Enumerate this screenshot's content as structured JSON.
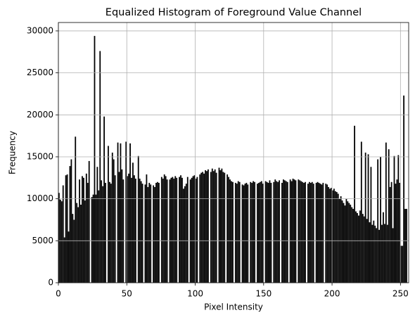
{
  "chart_data": {
    "type": "histogram",
    "title": "Equalized Histogram of Foreground Value Channel",
    "x_label": "Pixel Intensity",
    "y_label": "Frequency",
    "bins": [
      0,
      1,
      2,
      3,
      4,
      5,
      6,
      7,
      8,
      9,
      10,
      11,
      12,
      13,
      14,
      15,
      16,
      17,
      18,
      19,
      20,
      21,
      22,
      23,
      24,
      25,
      26,
      27,
      28,
      29,
      30,
      31,
      32,
      33,
      34,
      35,
      36,
      37,
      38,
      39,
      40,
      41,
      42,
      43,
      44,
      45,
      46,
      47,
      48,
      49,
      50,
      51,
      52,
      53,
      54,
      55,
      56,
      57,
      58,
      59,
      60,
      61,
      62,
      63,
      64,
      65,
      66,
      67,
      68,
      69,
      70,
      71,
      72,
      73,
      74,
      75,
      76,
      77,
      78,
      79,
      80,
      81,
      82,
      83,
      84,
      85,
      86,
      87,
      88,
      89,
      90,
      91,
      92,
      93,
      94,
      95,
      96,
      97,
      98,
      99,
      100,
      101,
      102,
      103,
      104,
      105,
      106,
      107,
      108,
      109,
      110,
      111,
      112,
      113,
      114,
      115,
      116,
      117,
      118,
      119,
      120,
      121,
      122,
      123,
      124,
      125,
      126,
      127,
      128,
      129,
      130,
      131,
      132,
      133,
      134,
      135,
      136,
      137,
      138,
      139,
      140,
      141,
      142,
      143,
      144,
      145,
      146,
      147,
      148,
      149,
      150,
      151,
      152,
      153,
      154,
      155,
      156,
      157,
      158,
      159,
      160,
      161,
      162,
      163,
      164,
      165,
      166,
      167,
      168,
      169,
      170,
      171,
      172,
      173,
      174,
      175,
      176,
      177,
      178,
      179,
      180,
      181,
      182,
      183,
      184,
      185,
      186,
      187,
      188,
      189,
      190,
      191,
      192,
      193,
      194,
      195,
      196,
      197,
      198,
      199,
      200,
      201,
      202,
      203,
      204,
      205,
      206,
      207,
      208,
      209,
      210,
      211,
      212,
      213,
      214,
      215,
      216,
      217,
      218,
      219,
      220,
      221,
      222,
      223,
      224,
      225,
      226,
      227,
      228,
      229,
      230,
      231,
      232,
      233,
      234,
      235,
      236,
      237,
      238,
      239,
      240,
      241,
      242,
      243,
      244,
      245,
      246,
      247,
      248,
      249,
      250,
      251,
      252,
      253,
      254,
      255,
      256
    ],
    "counts": [
      10700,
      9900,
      9700,
      11600,
      5400,
      12800,
      12900,
      6100,
      13900,
      14700,
      8200,
      7500,
      17400,
      9500,
      9000,
      12300,
      9300,
      12700,
      12500,
      9800,
      13000,
      11900,
      14500,
      0,
      10200,
      10500,
      29400,
      10500,
      13800,
      11000,
      27600,
      12200,
      11500,
      19800,
      11900,
      0,
      16300,
      12000,
      11800,
      15500,
      14700,
      12800,
      0,
      16700,
      13200,
      16600,
      13500,
      12300,
      0,
      16800,
      12700,
      13000,
      16600,
      12500,
      14300,
      12800,
      12400,
      0,
      15100,
      12400,
      12100,
      11800,
      0,
      11700,
      12900,
      11400,
      11900,
      11700,
      0,
      11600,
      11400,
      11900,
      12000,
      11900,
      0,
      12600,
      12400,
      12900,
      12700,
      12300,
      0,
      12300,
      12500,
      12600,
      12400,
      12700,
      12500,
      0,
      12600,
      12800,
      12500,
      11200,
      11500,
      11800,
      12600,
      0,
      12300,
      12500,
      12700,
      12800,
      12400,
      12600,
      0,
      12900,
      13100,
      13200,
      13000,
      13400,
      13300,
      13500,
      0,
      13200,
      13600,
      13300,
      13500,
      13100,
      0,
      13700,
      13400,
      13600,
      13200,
      13100,
      0,
      12900,
      12600,
      12300,
      12100,
      12000,
      0,
      11900,
      11800,
      12100,
      12000,
      0,
      11700,
      11600,
      11800,
      11900,
      11700,
      0,
      12000,
      11900,
      12100,
      12000,
      0,
      11800,
      11900,
      12000,
      12100,
      11800,
      0,
      12100,
      12000,
      11900,
      12200,
      11900,
      0,
      12000,
      12300,
      12100,
      12000,
      12200,
      0,
      11900,
      12300,
      12200,
      12100,
      12000,
      0,
      12300,
      12100,
      12400,
      12300,
      12200,
      0,
      12300,
      12200,
      12100,
      12000,
      11900,
      12000,
      0,
      11800,
      12000,
      11900,
      12000,
      11800,
      0,
      11900,
      12000,
      11900,
      11800,
      11700,
      11900,
      0,
      11800,
      11700,
      11400,
      11200,
      11300,
      11000,
      11200,
      10900,
      10800,
      10600,
      10000,
      10300,
      9800,
      9500,
      9200,
      10000,
      9700,
      9500,
      9300,
      9000,
      8800,
      18700,
      8500,
      8300,
      8000,
      8600,
      16800,
      8200,
      7900,
      15500,
      7600,
      15300,
      7200,
      13800,
      6900,
      7400,
      6800,
      6500,
      14700,
      6300,
      15000,
      6900,
      8400,
      7000,
      16700,
      6900,
      15900,
      11400,
      12000,
      6500,
      15100,
      11800,
      12300,
      15200,
      11900,
      4400,
      4400,
      22300,
      8800,
      8800,
      0
    ],
    "color": "#000000",
    "xlim": [
      0,
      256
    ],
    "xticks": [
      0,
      50,
      100,
      150,
      200,
      250
    ],
    "ylim": [
      0,
      31000
    ],
    "yticks": [
      0,
      5000,
      10000,
      15000,
      20000,
      25000,
      30000
    ],
    "grid": true
  }
}
